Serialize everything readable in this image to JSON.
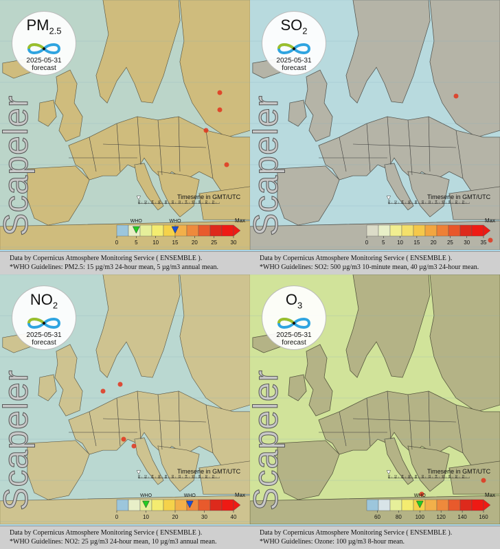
{
  "panels": [
    {
      "id": "pm25",
      "pollutant_main": "PM",
      "pollutant_sub": "2.5",
      "date": "2025-05-31",
      "forecast_label": "forecast",
      "brand": "Scapeler",
      "timeserie": "Timeserie in GMT/UTC",
      "timeline_hours": [
        "00",
        "02",
        "04",
        "06",
        "08",
        "10",
        "12",
        "14",
        "16",
        "18",
        "20",
        "22"
      ],
      "legend": {
        "ticks": [
          "0",
          "5",
          "10",
          "15",
          "20",
          "25",
          "30"
        ],
        "tick_values": [
          0,
          5,
          10,
          15,
          20,
          25,
          30
        ],
        "min": 0,
        "max": 30,
        "max_label": "Max",
        "who_label": "WHO",
        "who_markers": [
          {
            "value": 5,
            "color": "#22cc22"
          },
          {
            "value": 15,
            "color": "#1a4fd6"
          }
        ],
        "colors": [
          "#9cc6dc",
          "#e8efc8",
          "#e6ef9a",
          "#f4ec70",
          "#f5d24a",
          "#f2b04a",
          "#ee8a3c",
          "#e85a2c",
          "#dd2a1c",
          "#ee1a14"
        ]
      },
      "caption_line1": "Data by Copernicus Atmosphere Monitoring Service ( ENSEMBLE ).",
      "caption_line2": "*WHO Guidelines: PM2.5: 15 µg/m3 24-hour mean, 5 µg/m3 annual mean.",
      "tint": "#f3d36a"
    },
    {
      "id": "so2",
      "pollutant_main": "SO",
      "pollutant_sub": "2",
      "date": "2025-05-31",
      "forecast_label": "forecast",
      "brand": "Scapeler",
      "timeserie": "Timeserie in GMT/UTC",
      "timeline_hours": [
        "00",
        "02",
        "04",
        "06",
        "08",
        "10",
        "12",
        "14",
        "16",
        "18",
        "20",
        "22"
      ],
      "legend": {
        "ticks": [
          "0",
          "5",
          "10",
          "15",
          "20",
          "25",
          "30",
          "35"
        ],
        "tick_values": [
          0,
          5,
          10,
          15,
          20,
          25,
          30,
          35
        ],
        "min": 0,
        "max": 35,
        "max_label": "Max",
        "who_label": "",
        "who_markers": [],
        "colors": [
          "#dcdcc8",
          "#e8efc8",
          "#f2ee90",
          "#f4e06a",
          "#f5c84a",
          "#f2a640",
          "#ee8036",
          "#e8562a",
          "#dd2a1c",
          "#ee1a14"
        ]
      },
      "caption_line1": "Data by Copernicus Atmosphere Monitoring Service ( ENSEMBLE ).",
      "caption_line2": "*WHO Guidelines: SO2: 500 µg/m3 10-minute mean, 40 µg/m3 24-hour mean.",
      "tint": "#e9e6bf"
    },
    {
      "id": "no2",
      "pollutant_main": "NO",
      "pollutant_sub": "2",
      "date": "2025-05-31",
      "forecast_label": "forecast",
      "brand": "Scapeler",
      "timeserie": "Timeserie in GMT/UTC",
      "timeline_hours": [
        "00",
        "02",
        "04",
        "06",
        "08",
        "10",
        "12",
        "14",
        "16",
        "18",
        "20",
        "22"
      ],
      "legend": {
        "ticks": [
          "0",
          "10",
          "20",
          "30",
          "40"
        ],
        "tick_values": [
          0,
          10,
          20,
          30,
          40
        ],
        "min": 0,
        "max": 40,
        "max_label": "Max",
        "who_label": "WHO",
        "who_markers": [
          {
            "value": 10,
            "color": "#22cc22"
          },
          {
            "value": 25,
            "color": "#1a4fd6"
          }
        ],
        "colors": [
          "#9cc6dc",
          "#e8efc8",
          "#e6ef9a",
          "#f4ec70",
          "#f5d24a",
          "#f2b04a",
          "#ee8a3c",
          "#e85a2c",
          "#dd2a1c",
          "#ee1a14"
        ]
      },
      "caption_line1": "Data by Copernicus Atmosphere Monitoring Service ( ENSEMBLE ).",
      "caption_line2": "*WHO Guidelines: NO2: 25 µg/m3 24-hour mean, 10 µg/m3 annual mean.",
      "tint": "#f1e08a"
    },
    {
      "id": "o3",
      "pollutant_main": "O",
      "pollutant_sub": "3",
      "date": "2025-05-31",
      "forecast_label": "forecast",
      "brand": "Scapeler",
      "timeserie": "Timeserie in GMT/UTC",
      "timeline_hours": [
        "00",
        "02",
        "04",
        "06",
        "08",
        "10",
        "12",
        "14",
        "16",
        "18",
        "20",
        "22"
      ],
      "legend": {
        "ticks": [
          "60",
          "80",
          "100",
          "120",
          "140",
          "160"
        ],
        "tick_values": [
          60,
          80,
          100,
          120,
          140,
          160
        ],
        "min": 50,
        "max": 160,
        "max_label": "Max",
        "who_label": "WHO",
        "who_markers": [
          {
            "value": 100,
            "color": "#22cc22"
          }
        ],
        "colors": [
          "#9cc6dc",
          "#d8e4e8",
          "#e6ef9a",
          "#f4ec70",
          "#f5d24a",
          "#f2b04a",
          "#ee8a3c",
          "#e85a2c",
          "#dd2a1c",
          "#ee1a14"
        ]
      },
      "caption_line1": "Data by Copernicus Atmosphere Monitoring Service ( ENSEMBLE ).",
      "caption_line2": "*WHO Guidelines: Ozone: 100 µg/m3 8-hour mean.",
      "tint": "#f2ee5a"
    }
  ],
  "colors": {
    "land": "#9a9a9a",
    "sea": "#a9d6e8",
    "caption_bg": "#cfcfcf"
  }
}
